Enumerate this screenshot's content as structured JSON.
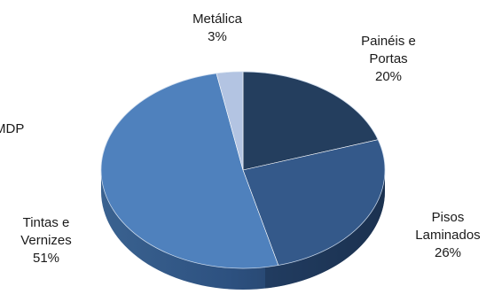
{
  "chart_data": {
    "type": "pie",
    "title": "",
    "style": "3d",
    "colors": {
      "paineis": "#243e5e",
      "pisos": "#34598a",
      "tintas": "#4f81bd",
      "metalica": "#b3c4e2",
      "depth_dark": "#1c3250",
      "depth_light": "#3a6290"
    },
    "slices": [
      {
        "key": "paineis",
        "line1": "Painéis e",
        "line2": "Portas",
        "value": 20,
        "value_label": "20%"
      },
      {
        "key": "pisos",
        "line1": "Pisos",
        "line2": "Laminados",
        "value": 26,
        "value_label": "26%"
      },
      {
        "key": "tintas",
        "line1": "Tintas e",
        "line2": "Vernizes",
        "value": 51,
        "value_label": "51%"
      },
      {
        "key": "metalica",
        "line1": "Metálica",
        "line2": "",
        "value": 3,
        "value_label": "3%"
      }
    ],
    "partial_label_left": {
      "line1": "MDP",
      "line2": ""
    }
  }
}
